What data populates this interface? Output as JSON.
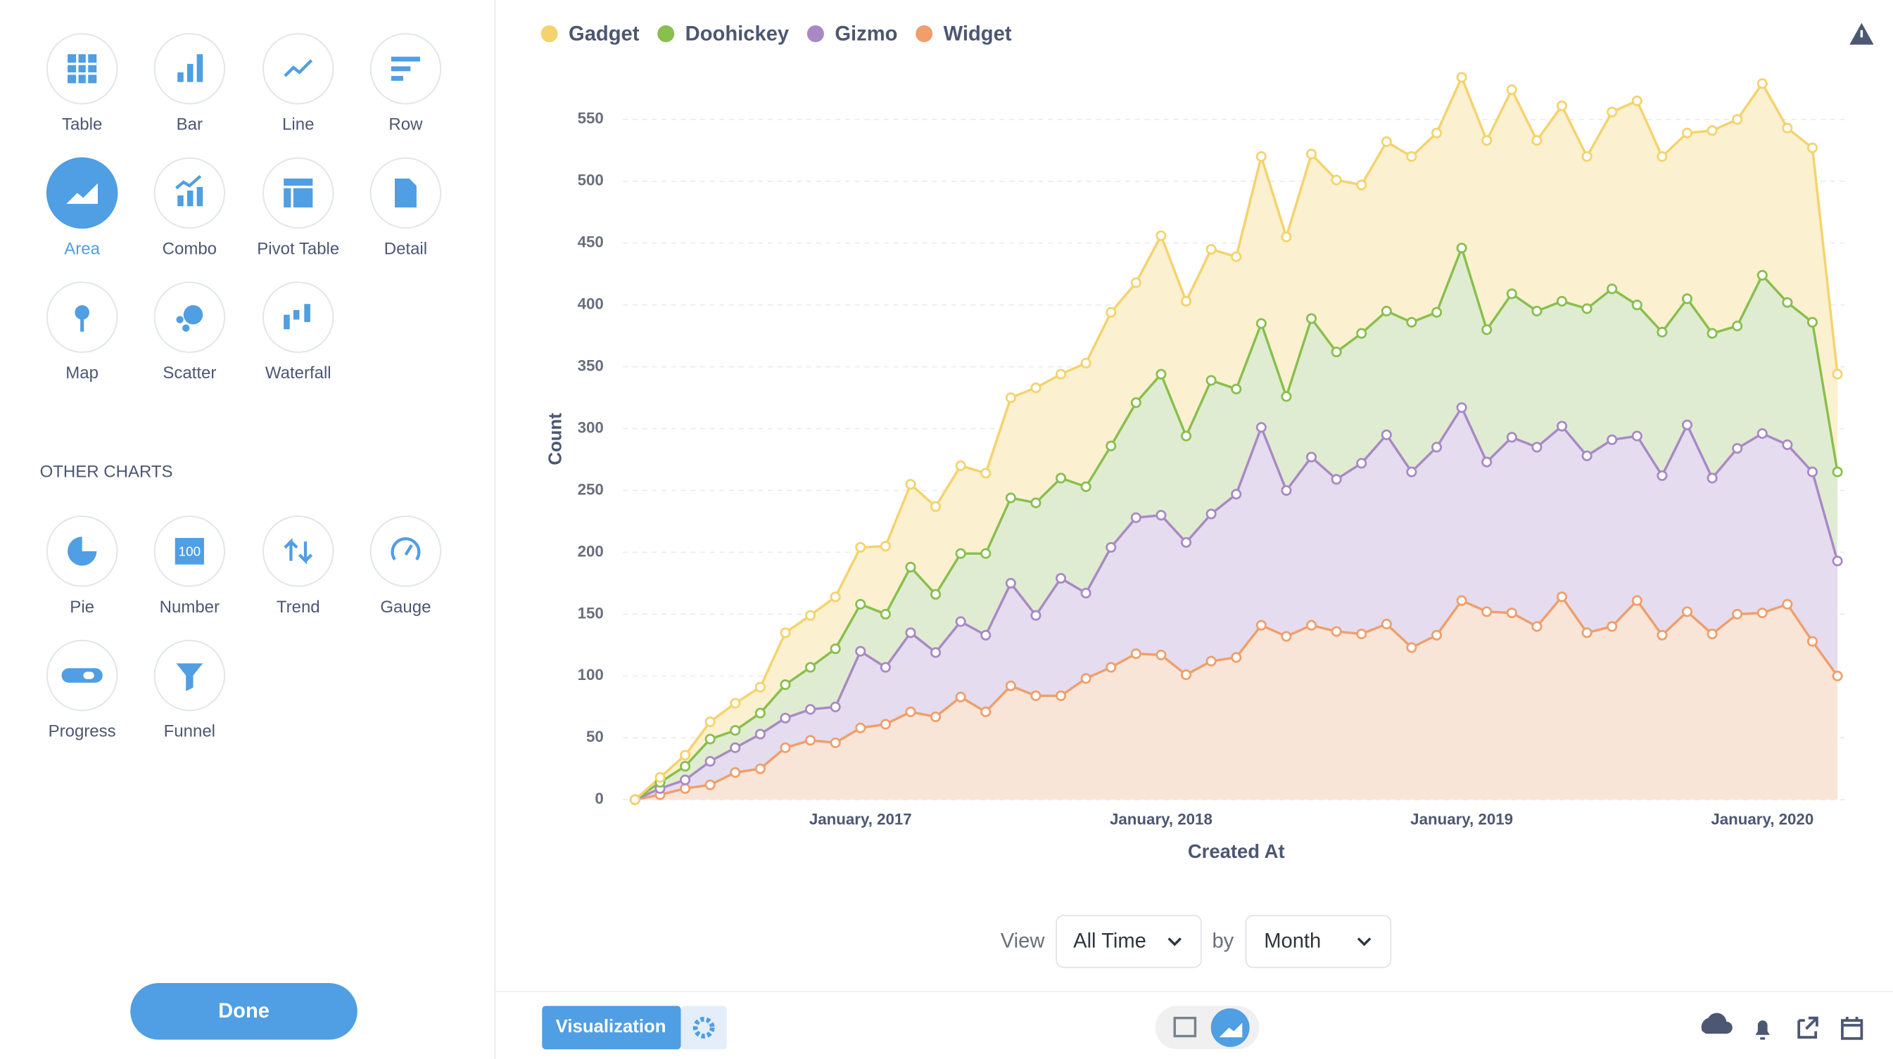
{
  "ui": {
    "chart_types": [
      "Table",
      "Bar",
      "Line",
      "Row",
      "Area",
      "Combo",
      "Pivot Table",
      "Detail",
      "Map",
      "Scatter",
      "Waterfall"
    ],
    "selected": 4,
    "other_charts_heading": "OTHER CHARTS",
    "other_charts": [
      "Pie",
      "Number",
      "Trend",
      "Gauge",
      "Progress",
      "Funnel"
    ],
    "number_icon_text": "100",
    "done": "Done",
    "view_label": "View",
    "view_value": "All Time",
    "by_label": "by",
    "by_value": "Month",
    "visualization": "Visualization"
  },
  "chart_data": {
    "type": "stacked_area",
    "x_label": "Created At",
    "y_label": "Count",
    "x": [
      "2016-04",
      "2016-05",
      "2016-06",
      "2016-07",
      "2016-08",
      "2016-09",
      "2016-10",
      "2016-11",
      "2016-12",
      "2017-01",
      "2017-02",
      "2017-03",
      "2017-04",
      "2017-05",
      "2017-06",
      "2017-07",
      "2017-08",
      "2017-09",
      "2017-10",
      "2017-11",
      "2017-12",
      "2018-01",
      "2018-02",
      "2018-03",
      "2018-04",
      "2018-05",
      "2018-06",
      "2018-07",
      "2018-08",
      "2018-09",
      "2018-10",
      "2018-11",
      "2018-12",
      "2019-01",
      "2019-02",
      "2019-03",
      "2019-04",
      "2019-05",
      "2019-06",
      "2019-07",
      "2019-08",
      "2019-09",
      "2019-10",
      "2019-11",
      "2019-12",
      "2020-01",
      "2020-02",
      "2020-03",
      "2020-04"
    ],
    "series": [
      {
        "name": "Gadget",
        "color": "#f4d36c",
        "fill": "#fbf0cf",
        "values": [
          0,
          4,
          9,
          14,
          22,
          21,
          42,
          42,
          42,
          46,
          55,
          67,
          71,
          71,
          65,
          81,
          93,
          84,
          100,
          108,
          97,
          112,
          109,
          106,
          107,
          135,
          129,
          133,
          139,
          120,
          137,
          134,
          145,
          138,
          153,
          165,
          138,
          158,
          123,
          143,
          165,
          142,
          134,
          164,
          167,
          155,
          141,
          141,
          79
        ]
      },
      {
        "name": "Doohickey",
        "color": "#88bf4d",
        "fill": "#dfecd1",
        "values": [
          0,
          5,
          11,
          18,
          14,
          17,
          27,
          34,
          47,
          38,
          43,
          53,
          47,
          55,
          66,
          69,
          91,
          81,
          86,
          82,
          93,
          114,
          86,
          108,
          85,
          84,
          76,
          112,
          103,
          105,
          100,
          121,
          109,
          129,
          107,
          116,
          110,
          101,
          119,
          122,
          106,
          116,
          102,
          117,
          99,
          128,
          115,
          121,
          72
        ]
      },
      {
        "name": "Gizmo",
        "color": "#a989c5",
        "fill": "#e5dcef",
        "values": [
          0,
          5,
          7,
          19,
          20,
          28,
          24,
          25,
          29,
          62,
          46,
          64,
          52,
          61,
          62,
          83,
          65,
          95,
          69,
          97,
          110,
          113,
          107,
          119,
          132,
          160,
          118,
          136,
          123,
          138,
          153,
          142,
          152,
          156,
          121,
          142,
          145,
          138,
          143,
          151,
          133,
          129,
          151,
          126,
          134,
          145,
          129,
          137,
          93
        ]
      },
      {
        "name": "Widget",
        "color": "#ef9f6b",
        "fill": "#f9e5d7",
        "values": [
          0,
          4,
          9,
          12,
          22,
          25,
          42,
          48,
          46,
          58,
          61,
          71,
          67,
          83,
          71,
          92,
          84,
          84,
          98,
          107,
          118,
          117,
          101,
          112,
          115,
          141,
          132,
          141,
          136,
          134,
          142,
          123,
          133,
          161,
          152,
          151,
          140,
          164,
          135,
          140,
          161,
          133,
          152,
          134,
          150,
          151,
          158,
          128,
          100
        ]
      }
    ],
    "ylim": [
      0,
      580
    ],
    "yticks": [
      0,
      50,
      100,
      150,
      200,
      250,
      300,
      350,
      400,
      450,
      500,
      550
    ],
    "xticks": [
      {
        "value": "2017-01",
        "label": "January, 2017"
      },
      {
        "value": "2018-01",
        "label": "January, 2018"
      },
      {
        "value": "2019-01",
        "label": "January, 2019"
      },
      {
        "value": "2020-01",
        "label": "January, 2020"
      }
    ],
    "grid": true,
    "legend": "top-left"
  }
}
